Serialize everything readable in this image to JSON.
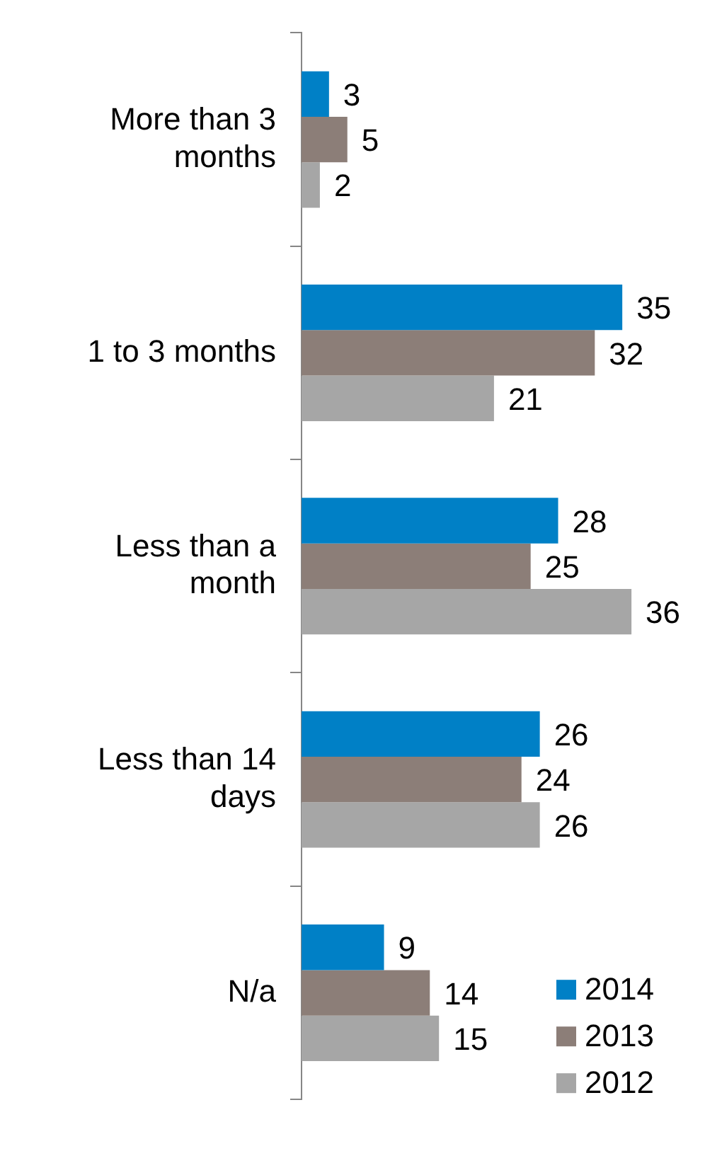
{
  "chart_data": {
    "type": "bar",
    "orientation": "horizontal",
    "categories": [
      "More than 3 months",
      "1 to 3 months",
      "Less than a month",
      "Less than 14 days",
      "N/a"
    ],
    "series": [
      {
        "name": "2014",
        "color": "#0080c6",
        "values": [
          3,
          35,
          28,
          26,
          9
        ]
      },
      {
        "name": "2013",
        "color": "#8c7e78",
        "values": [
          5,
          32,
          25,
          24,
          14
        ]
      },
      {
        "name": "2012",
        "color": "#a6a6a6",
        "values": [
          2,
          21,
          36,
          26,
          15
        ]
      }
    ],
    "data_labels": true,
    "legend": "bottom right",
    "grid": false
  }
}
